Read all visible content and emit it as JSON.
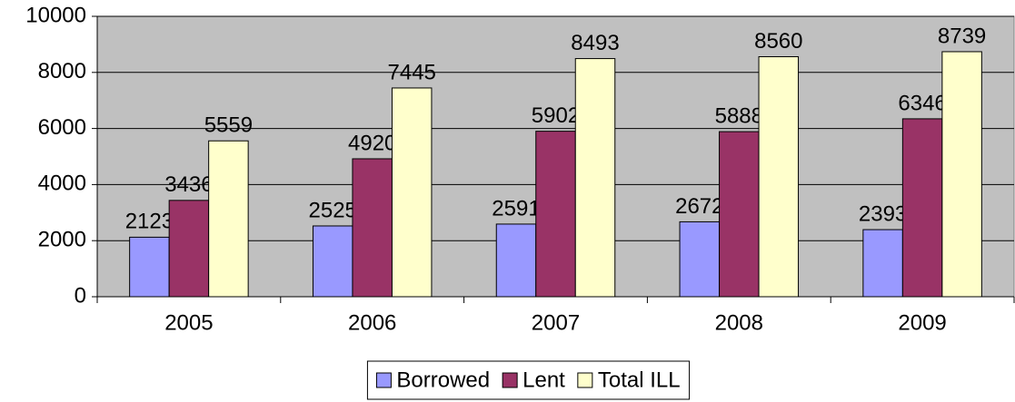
{
  "chart_data": {
    "type": "bar",
    "categories": [
      "2005",
      "2006",
      "2007",
      "2008",
      "2009"
    ],
    "series": [
      {
        "name": "Borrowed",
        "color": "#9999ff",
        "values": [
          2123,
          2525,
          2591,
          2672,
          2393
        ]
      },
      {
        "name": "Lent",
        "color": "#993366",
        "values": [
          3436,
          4920,
          5902,
          5888,
          6346
        ]
      },
      {
        "name": "Total ILL",
        "color": "#ffffcc",
        "values": [
          5559,
          7445,
          8493,
          8560,
          8739
        ]
      }
    ],
    "ylim": [
      0,
      10000
    ],
    "yticks": [
      0,
      2000,
      4000,
      6000,
      8000,
      10000
    ],
    "grid": true,
    "legend": "bottom",
    "plot_background": "#c0c0c0"
  }
}
